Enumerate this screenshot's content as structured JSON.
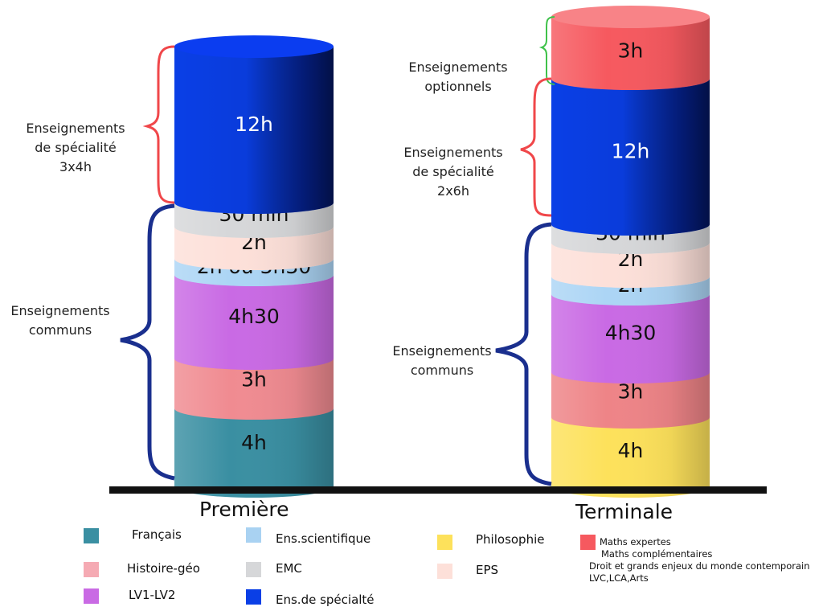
{
  "columns": [
    {
      "title": "Première",
      "segments": [
        {
          "label": "4h",
          "color": "#3a8fa2"
        },
        {
          "label": "3h",
          "color": "#f08b91"
        },
        {
          "label": "4h30",
          "color": "#c96ae4"
        },
        {
          "label": "2h ou 3h30",
          "color": "#acd5f5"
        },
        {
          "label": "2h",
          "color": "#fde0d9"
        },
        {
          "label": "30 min",
          "color": "#d6d7d9"
        },
        {
          "label": "12h",
          "color": "#0a3fe6"
        }
      ]
    },
    {
      "title": "Terminale",
      "segments": [
        {
          "label": "4h",
          "color": "#fde15b"
        },
        {
          "label": "3h",
          "color": "#ee8487"
        },
        {
          "label": "4h30",
          "color": "#c96ae4"
        },
        {
          "label": "2h",
          "color": "#acd5f5"
        },
        {
          "label": "2h",
          "color": "#fde0d9"
        },
        {
          "label": "30 min",
          "color": "#d6d7d9"
        },
        {
          "label": "12h",
          "color": "#0a3fe6"
        },
        {
          "label": "3h",
          "color": "#f6595f"
        }
      ]
    }
  ],
  "annotations": {
    "premiere_specialite": [
      "Enseignements",
      "de spécialité",
      "3x4h"
    ],
    "premiere_communs": [
      "Enseignements",
      "communs"
    ],
    "terminale_optionnels": [
      "Enseignements",
      "optionnels"
    ],
    "terminale_specialite": [
      "Enseignements",
      "de spécialité",
      "2x6h"
    ],
    "terminale_communs": [
      "Enseignements",
      "communs"
    ]
  },
  "colors": {
    "brace_red": "#f0474a",
    "brace_blue": "#1a2f8e",
    "brace_green": "#3fc24a",
    "baseline": "#111111"
  },
  "legend": [
    {
      "label": "Français",
      "color": "#3a8fa2"
    },
    {
      "label": "Histoire-géo",
      "color": "#f5aab3"
    },
    {
      "label": "LV1-LV2",
      "color": "#c96ae4"
    },
    {
      "label": "Ens.scientifique",
      "color": "#a9d2f2"
    },
    {
      "label": "EMC",
      "color": "#d6d7d9"
    },
    {
      "label": "Ens.de spécialté",
      "color": "#0a3fe6"
    },
    {
      "label": "Philosophie",
      "color": "#fde15b"
    },
    {
      "label": "EPS",
      "color": "#fde0d9"
    },
    {
      "label": "Maths expertes",
      "color": "#f6595f",
      "extra": [
        "Maths complémentaires",
        "Droit et grands enjeux du monde contemporain",
        "LVC,LCA,Arts"
      ]
    }
  ]
}
